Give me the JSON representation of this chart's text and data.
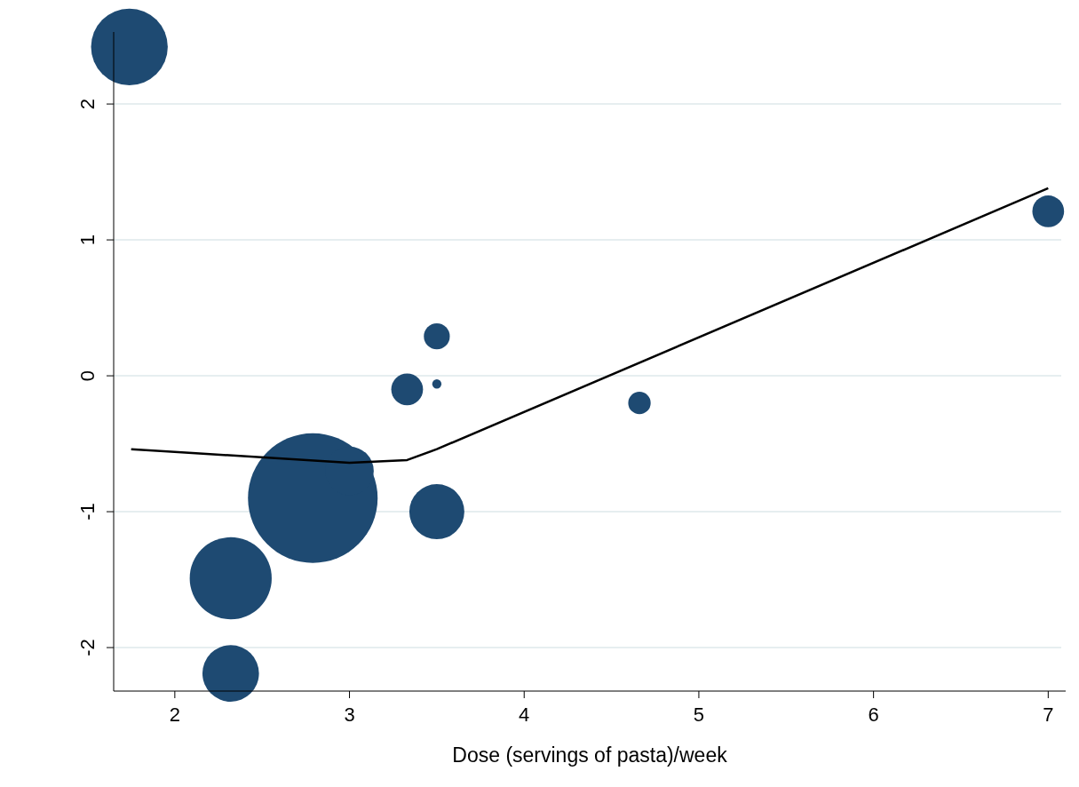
{
  "chart_data": {
    "type": "bubble",
    "xlabel": "Dose (servings of pasta)/week",
    "xlim": [
      1.65,
      7.1
    ],
    "ylim": [
      -2.32,
      2.53
    ],
    "xticks": [
      2,
      3,
      4,
      5,
      6,
      7
    ],
    "yticks": [
      -2,
      -1,
      0,
      1,
      2
    ],
    "grid": "y",
    "series": [
      {
        "color": "#1e4a72",
        "x": [
          1.74,
          2.32,
          2.32,
          2.79,
          3.0,
          3.33,
          3.5,
          3.5,
          3.5,
          4.66,
          7.0
        ],
        "values": [
          2.42,
          -1.49,
          -2.19,
          -0.9,
          -0.7,
          -0.1,
          0.29,
          -0.06,
          -1.0,
          -0.2,
          1.21
        ],
        "sizes": [
          0.35,
          0.4,
          0.19,
          1,
          0.14,
          0.06,
          0.04,
          0.005,
          0.18,
          0.03,
          0.06
        ]
      },
      {
        "type": "line",
        "color": "#000000",
        "x": [
          1.75,
          3.0,
          3.33,
          3.5,
          7.0
        ],
        "values": [
          -0.54,
          -0.64,
          -0.62,
          -0.54,
          1.38
        ]
      }
    ]
  }
}
